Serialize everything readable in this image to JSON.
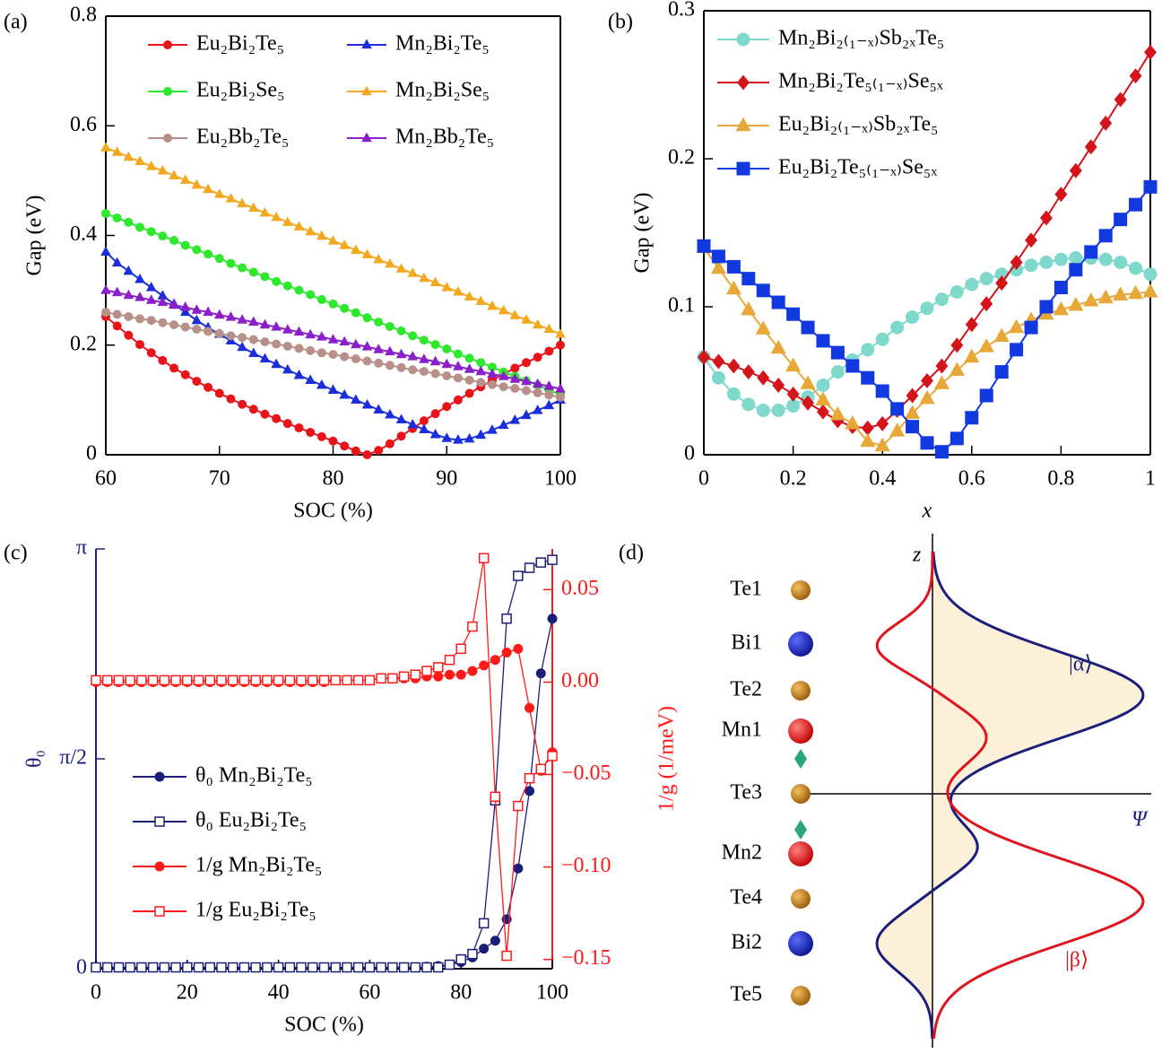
{
  "chart_data": [
    {
      "type": "line",
      "panel_label": "(a)",
      "x_label": "SOC (%)",
      "y_label": "Gap (eV)",
      "xlim": [
        60,
        100
      ],
      "ylim": [
        0,
        0.8
      ],
      "xticks": [
        60,
        70,
        80,
        90,
        100
      ],
      "yticks": [
        0,
        0.2,
        0.4,
        0.6,
        0.8
      ],
      "legend": "upper left",
      "legend_columns": 2,
      "x": [
        60,
        61,
        62,
        63,
        64,
        65,
        66,
        67,
        68,
        69,
        70,
        71,
        72,
        73,
        74,
        75,
        76,
        77,
        78,
        79,
        80,
        81,
        82,
        83,
        84,
        85,
        86,
        87,
        88,
        89,
        90,
        91,
        92,
        93,
        94,
        95,
        96,
        97,
        98,
        99,
        100
      ],
      "series": [
        {
          "name": "Eu₂Bi₂Te₅",
          "color": "#e8141b",
          "marker": "circle",
          "values": [
            0.252,
            0.235,
            0.218,
            0.201,
            0.186,
            0.172,
            0.158,
            0.146,
            0.134,
            0.123,
            0.112,
            0.102,
            0.092,
            0.083,
            0.074,
            0.066,
            0.057,
            0.049,
            0.041,
            0.033,
            0.025,
            0.016,
            0.007,
            0.0,
            0.008,
            0.02,
            0.034,
            0.048,
            0.062,
            0.075,
            0.088,
            0.1,
            0.112,
            0.124,
            0.136,
            0.147,
            0.158,
            0.168,
            0.178,
            0.189,
            0.2
          ]
        },
        {
          "name": "Mn₂Bi₂Te₅",
          "color": "#1a2edb",
          "marker": "triangle",
          "values": [
            0.37,
            0.35,
            0.335,
            0.32,
            0.305,
            0.29,
            0.275,
            0.26,
            0.245,
            0.232,
            0.22,
            0.208,
            0.196,
            0.185,
            0.175,
            0.165,
            0.155,
            0.145,
            0.136,
            0.127,
            0.118,
            0.109,
            0.1,
            0.091,
            0.082,
            0.073,
            0.064,
            0.055,
            0.046,
            0.037,
            0.03,
            0.027,
            0.029,
            0.036,
            0.045,
            0.054,
            0.063,
            0.072,
            0.081,
            0.09,
            0.1
          ]
        },
        {
          "name": "Eu₂Bi₂Se₅",
          "color": "#2ee82e",
          "marker": "circle",
          "values": [
            0.44,
            0.432,
            0.424,
            0.415,
            0.407,
            0.399,
            0.391,
            0.382,
            0.374,
            0.366,
            0.358,
            0.349,
            0.341,
            0.333,
            0.325,
            0.316,
            0.308,
            0.3,
            0.292,
            0.283,
            0.275,
            0.267,
            0.259,
            0.25,
            0.242,
            0.234,
            0.226,
            0.217,
            0.209,
            0.201,
            0.193,
            0.184,
            0.176,
            0.168,
            0.16,
            0.151,
            0.143,
            0.135,
            0.127,
            0.118,
            0.11
          ]
        },
        {
          "name": "Mn₂Bi₂Se₅",
          "color": "#f2a81f",
          "marker": "triangle",
          "values": [
            0.56,
            0.552,
            0.543,
            0.535,
            0.526,
            0.518,
            0.509,
            0.501,
            0.492,
            0.484,
            0.475,
            0.467,
            0.458,
            0.45,
            0.441,
            0.433,
            0.424,
            0.416,
            0.407,
            0.399,
            0.39,
            0.382,
            0.373,
            0.365,
            0.356,
            0.348,
            0.339,
            0.331,
            0.322,
            0.314,
            0.305,
            0.297,
            0.288,
            0.28,
            0.271,
            0.263,
            0.254,
            0.246,
            0.237,
            0.229,
            0.22
          ]
        },
        {
          "name": "Eu₂Bb₂Te₅",
          "color": "#b8908a",
          "marker": "circle",
          "values": [
            0.26,
            0.256,
            0.252,
            0.248,
            0.245,
            0.241,
            0.237,
            0.233,
            0.229,
            0.225,
            0.221,
            0.217,
            0.214,
            0.21,
            0.206,
            0.202,
            0.198,
            0.194,
            0.19,
            0.186,
            0.183,
            0.179,
            0.175,
            0.171,
            0.167,
            0.163,
            0.159,
            0.155,
            0.152,
            0.148,
            0.144,
            0.14,
            0.136,
            0.132,
            0.128,
            0.124,
            0.121,
            0.117,
            0.113,
            0.109,
            0.105
          ]
        },
        {
          "name": "Mn₂Bb₂Te₅",
          "color": "#8b1fc9",
          "marker": "triangle",
          "values": [
            0.3,
            0.296,
            0.291,
            0.287,
            0.282,
            0.278,
            0.273,
            0.269,
            0.264,
            0.26,
            0.255,
            0.251,
            0.246,
            0.242,
            0.237,
            0.233,
            0.228,
            0.224,
            0.219,
            0.215,
            0.21,
            0.206,
            0.201,
            0.197,
            0.192,
            0.188,
            0.183,
            0.179,
            0.174,
            0.17,
            0.165,
            0.161,
            0.156,
            0.152,
            0.147,
            0.143,
            0.138,
            0.134,
            0.129,
            0.125,
            0.12
          ]
        }
      ]
    },
    {
      "type": "line",
      "panel_label": "(b)",
      "x_label": "x",
      "y_label": "Gap (eV)",
      "xlim": [
        0,
        1
      ],
      "ylim": [
        0,
        0.3
      ],
      "xticks": [
        0,
        0.2,
        0.4,
        0.6,
        0.8,
        1
      ],
      "yticks": [
        0,
        0.1,
        0.2,
        0.3
      ],
      "legend": "upper left",
      "legend_columns": 1,
      "x": [
        0,
        0.033,
        0.067,
        0.1,
        0.133,
        0.167,
        0.2,
        0.233,
        0.267,
        0.3,
        0.333,
        0.367,
        0.4,
        0.433,
        0.467,
        0.5,
        0.533,
        0.567,
        0.6,
        0.633,
        0.667,
        0.7,
        0.733,
        0.767,
        0.8,
        0.833,
        0.867,
        0.9,
        0.933,
        0.967,
        1
      ],
      "series": [
        {
          "name": "Mn₂Bi₂₍₁₋ₓ₎Sb₂ₓTe₅",
          "color": "#7fd8cc",
          "marker": "circle",
          "values": [
            0.066,
            0.052,
            0.041,
            0.034,
            0.03,
            0.03,
            0.033,
            0.039,
            0.047,
            0.056,
            0.064,
            0.071,
            0.078,
            0.086,
            0.093,
            0.099,
            0.105,
            0.11,
            0.115,
            0.119,
            0.122,
            0.125,
            0.128,
            0.13,
            0.132,
            0.133,
            0.133,
            0.132,
            0.13,
            0.126,
            0.122
          ]
        },
        {
          "name": "Mn₂Bi₂Te₅₍₁₋ₓ₎Se₅ₓ",
          "color": "#d4141b",
          "marker": "diamond",
          "values": [
            0.066,
            0.063,
            0.06,
            0.056,
            0.052,
            0.047,
            0.041,
            0.035,
            0.029,
            0.023,
            0.019,
            0.018,
            0.021,
            0.03,
            0.04,
            0.05,
            0.06,
            0.074,
            0.088,
            0.102,
            0.116,
            0.13,
            0.145,
            0.16,
            0.176,
            0.192,
            0.208,
            0.224,
            0.24,
            0.256,
            0.272
          ]
        },
        {
          "name": "Eu₂Bi₂₍₁₋ₓ₎Sb₂ₓTe₅",
          "color": "#e8a838",
          "marker": "triangle",
          "values": [
            0.14,
            0.126,
            0.112,
            0.098,
            0.085,
            0.072,
            0.06,
            0.048,
            0.037,
            0.027,
            0.021,
            0.009,
            0.006,
            0.016,
            0.028,
            0.038,
            0.048,
            0.057,
            0.066,
            0.073,
            0.08,
            0.086,
            0.091,
            0.095,
            0.098,
            0.101,
            0.104,
            0.106,
            0.108,
            0.109,
            0.11
          ]
        },
        {
          "name": "Eu₂Bi₂Te₅₍₁₋ₓ₎Se₅ₓ",
          "color": "#1238e0",
          "marker": "square",
          "values": [
            0.141,
            0.134,
            0.127,
            0.119,
            0.111,
            0.103,
            0.095,
            0.086,
            0.077,
            0.069,
            0.06,
            0.052,
            0.043,
            0.031,
            0.019,
            0.008,
            0.002,
            0.011,
            0.025,
            0.04,
            0.056,
            0.071,
            0.086,
            0.1,
            0.113,
            0.125,
            0.137,
            0.148,
            0.159,
            0.169,
            0.181
          ]
        }
      ]
    },
    {
      "type": "line",
      "panel_label": "(c)",
      "x_label": "SOC (%)",
      "y_label": "θ₀",
      "y2_label": "1/g (1/meV)",
      "y_color": "#1b1f7a",
      "y2_color": "#ff1a1a",
      "xlim": [
        0,
        100
      ],
      "ylim": [
        0,
        3.1416
      ],
      "y2lim": [
        -0.155,
        0.072
      ],
      "xticks": [
        0,
        20,
        40,
        60,
        80,
        100
      ],
      "yticks": [
        0,
        {
          "value": 1.5708,
          "label": "π/2"
        },
        {
          "value": 3.1416,
          "label": "π"
        }
      ],
      "y2ticks": [
        {
          "value": -0.15,
          "label": "−0.15"
        },
        {
          "value": -0.1,
          "label": "−0.10"
        },
        {
          "value": -0.05,
          "label": "−0.05"
        },
        {
          "value": 0,
          "label": "0.00"
        },
        {
          "value": 0.05,
          "label": "0.05"
        }
      ],
      "legend": "center left",
      "legend_columns": 1,
      "x": [
        0,
        2.5,
        5,
        7.5,
        10,
        12.5,
        15,
        17.5,
        20,
        22.5,
        25,
        27.5,
        30,
        32.5,
        35,
        37.5,
        40,
        42.5,
        45,
        47.5,
        50,
        52.5,
        55,
        57.5,
        60,
        62.5,
        65,
        67.5,
        70,
        72.5,
        75,
        77.5,
        80,
        82.5,
        85,
        87.5,
        90,
        92.5,
        95,
        97.5,
        100
      ],
      "series": [
        {
          "name": "θ₀  Mn₂Bi₂Te₅",
          "color": "#1b1f7a",
          "marker": "circle",
          "filled": true,
          "values": [
            0.01,
            0.01,
            0.01,
            0.01,
            0.01,
            0.01,
            0.01,
            0.01,
            0.01,
            0.01,
            0.01,
            0.01,
            0.01,
            0.01,
            0.01,
            0.01,
            0.01,
            0.01,
            0.01,
            0.01,
            0.01,
            0.01,
            0.01,
            0.01,
            0.01,
            0.01,
            0.01,
            0.01,
            0.01,
            0.015,
            0.02,
            0.03,
            0.05,
            0.085,
            0.15,
            0.21,
            0.37,
            0.75,
            1.33,
            2.21,
            2.62
          ]
        },
        {
          "name": "θ₀  Eu₂Bi₂Te₅",
          "color": "#1b1f7a",
          "marker": "square",
          "filled": false,
          "values": [
            0.01,
            0.01,
            0.01,
            0.01,
            0.01,
            0.01,
            0.01,
            0.01,
            0.01,
            0.01,
            0.01,
            0.01,
            0.01,
            0.01,
            0.01,
            0.01,
            0.01,
            0.01,
            0.01,
            0.01,
            0.01,
            0.01,
            0.01,
            0.01,
            0.01,
            0.01,
            0.01,
            0.01,
            0.01,
            0.01,
            0.01,
            0.03,
            0.07,
            0.11,
            0.34,
            1.26,
            2.62,
            2.94,
            3.0,
            3.04,
            3.06
          ]
        },
        {
          "name": "1/g  Mn₂Bi₂Te₅",
          "color": "#ff1a1a",
          "marker": "circle",
          "filled": true,
          "axis": "y2",
          "values": [
            0,
            0,
            0,
            0,
            0,
            0,
            0,
            0,
            0,
            0,
            0,
            0,
            0,
            0,
            0,
            0,
            0,
            0,
            0,
            0,
            0,
            0.001,
            0.001,
            0.001,
            0.001,
            0.002,
            0.002,
            0.002,
            0.002,
            0.003,
            0.003,
            0.004,
            0.004,
            0.006,
            0.009,
            0.012,
            0.016,
            0.018,
            -0.014,
            -0.048,
            -0.038
          ]
        },
        {
          "name": "1/g  Eu₂Bi₂Te₅",
          "color": "#ff1a1a",
          "marker": "square",
          "filled": false,
          "axis": "y2",
          "values": [
            0.001,
            0.001,
            0.001,
            0.001,
            0.001,
            0.001,
            0.001,
            0.001,
            0.001,
            0.001,
            0.001,
            0.001,
            0.001,
            0.001,
            0.001,
            0.001,
            0.001,
            0.001,
            0.001,
            0.001,
            0.001,
            0.001,
            0.001,
            0.001,
            0.001,
            0.002,
            0.002,
            0.003,
            0.004,
            0.006,
            0.008,
            0.012,
            0.018,
            0.03,
            0.067,
            -0.062,
            -0.148,
            -0.067,
            -0.052,
            -0.047,
            -0.04
          ]
        }
      ]
    }
  ],
  "diagram": {
    "panel_label": "(d)",
    "axis_z": "z",
    "axis_psi": "Ψ",
    "alpha": "|α⟩",
    "beta": "|β⟩",
    "atoms": [
      "Te1",
      "Bi1",
      "Te2",
      "Mn1",
      "Te3",
      "Mn2",
      "Te4",
      "Bi2",
      "Te5"
    ]
  }
}
